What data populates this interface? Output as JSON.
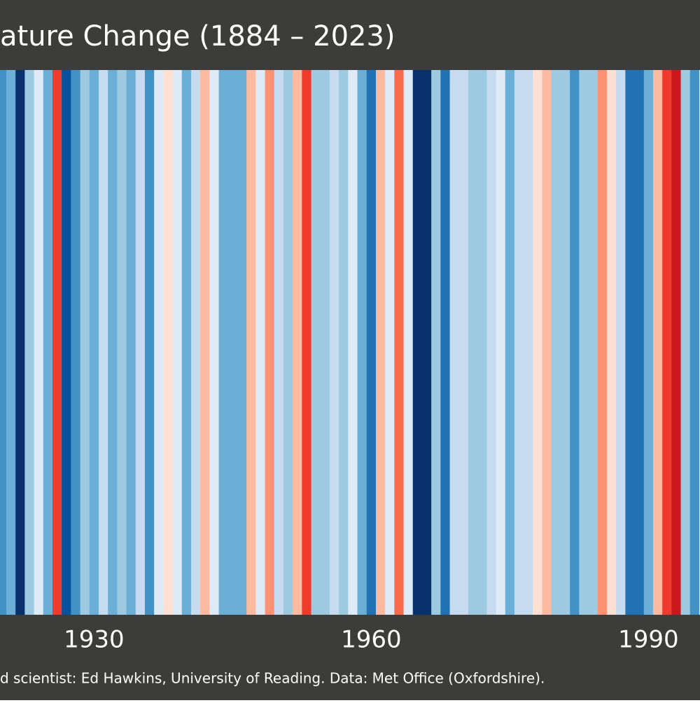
{
  "chart_data": {
    "type": "stripes",
    "title": "ature Change (1884 – 2023)",
    "footer": "d scientist: Ed Hawkins, University of Reading. Data: Met Office (Oxfordshire).",
    "x": [
      1920,
      1921,
      1922,
      1923,
      1924,
      1925,
      1926,
      1927,
      1928,
      1929,
      1930,
      1931,
      1932,
      1933,
      1934,
      1935,
      1936,
      1937,
      1938,
      1939,
      1940,
      1941,
      1942,
      1943,
      1944,
      1945,
      1946,
      1947,
      1948,
      1949,
      1950,
      1951,
      1952,
      1953,
      1954,
      1955,
      1956,
      1957,
      1958,
      1959,
      1960,
      1961,
      1962,
      1963,
      1964,
      1965,
      1966,
      1967,
      1968,
      1969,
      1970,
      1971,
      1972,
      1973,
      1974,
      1975,
      1976,
      1977,
      1978,
      1979,
      1980,
      1981,
      1982,
      1983,
      1984,
      1985,
      1986,
      1987,
      1988,
      1989,
      1990,
      1991,
      1992,
      1993,
      1994,
      1995,
      1996
    ],
    "colors": [
      "#4292c6",
      "#6baed6",
      "#08306b",
      "#9ecae1",
      "#deebf7",
      "#6baed6",
      "#ef3b2c",
      "#08519c",
      "#4292c6",
      "#9ecae1",
      "#6baed6",
      "#c6dbef",
      "#6baed6",
      "#9ecae1",
      "#6baed6",
      "#c6dbef",
      "#4292c6",
      "#deebf7",
      "#fee0d2",
      "#deebf7",
      "#6baed6",
      "#c6dbef",
      "#fcbba1",
      "#deebf7",
      "#6baed6",
      "#6baed6",
      "#6baed6",
      "#fcbba1",
      "#deebf7",
      "#fc9272",
      "#c6dbef",
      "#9ecae1",
      "#fcbba1",
      "#ef3b2c",
      "#9ecae1",
      "#9ecae1",
      "#c6dbef",
      "#9ecae1",
      "#deebf7",
      "#6baed6",
      "#2171b5",
      "#fcbba1",
      "#deebf7",
      "#fb6a4a",
      "#deebf7",
      "#08306b",
      "#08306b",
      "#9ecae1",
      "#2171b5",
      "#c6dbef",
      "#c6dbef",
      "#9ecae1",
      "#9ecae1",
      "#c6dbef",
      "#deebf7",
      "#6baed6",
      "#c6dbef",
      "#c6dbef",
      "#fee0d2",
      "#fcbba1",
      "#9ecae1",
      "#9ecae1",
      "#4292c6",
      "#9ecae1",
      "#9ecae1",
      "#fc9272",
      "#fee0d2",
      "#c6dbef",
      "#2171b5",
      "#2171b5",
      "#6baed6",
      "#fcbba1",
      "#ef3b2c",
      "#cb181d",
      "#9ecae1",
      "#4292c6",
      "#deebf7"
    ],
    "xlim": [
      1920.32,
      1996.08
    ],
    "xticks": [
      1930,
      1960,
      1990
    ],
    "background": "#3c3c3a"
  }
}
